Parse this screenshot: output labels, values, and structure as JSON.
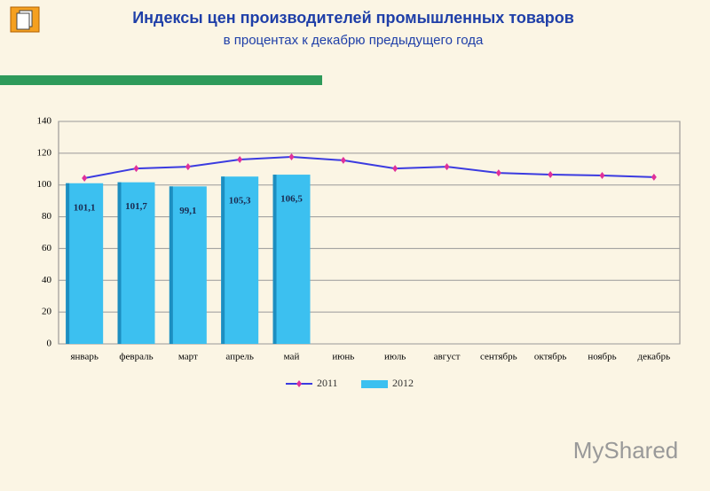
{
  "chart_data": {
    "type": "bar",
    "title": "Индексы цен производителей промышленных товаров",
    "subtitle": "в процентах к декабрю предыдущего года",
    "categories": [
      "январь",
      "февраль",
      "март",
      "апрель",
      "май",
      "июнь",
      "июль",
      "август",
      "сентябрь",
      "октябрь",
      "ноябрь",
      "декабрь"
    ],
    "series": [
      {
        "name": "2011",
        "type": "line",
        "color": "#3b3be0",
        "marker_color": "#e0309a",
        "values": [
          104.3,
          110.4,
          111.5,
          116,
          117.7,
          115.5,
          110.4,
          111.5,
          107.6,
          106.5,
          106,
          104.9
        ]
      },
      {
        "name": "2012",
        "type": "bar",
        "color": "#3cc0f0",
        "values": [
          101.1,
          101.7,
          99.1,
          105.3,
          106.5,
          null,
          null,
          null,
          null,
          null,
          null,
          null
        ],
        "value_labels": [
          "101,1",
          "101,7",
          "99,1",
          "105,3",
          "106,5",
          null,
          null,
          null,
          null,
          null,
          null,
          null
        ]
      }
    ],
    "ylim": [
      0,
      140
    ],
    "yticks": [
      0,
      20,
      40,
      60,
      80,
      100,
      120,
      140
    ],
    "grid": true,
    "legend": "bottom"
  },
  "watermark": "MyShared"
}
